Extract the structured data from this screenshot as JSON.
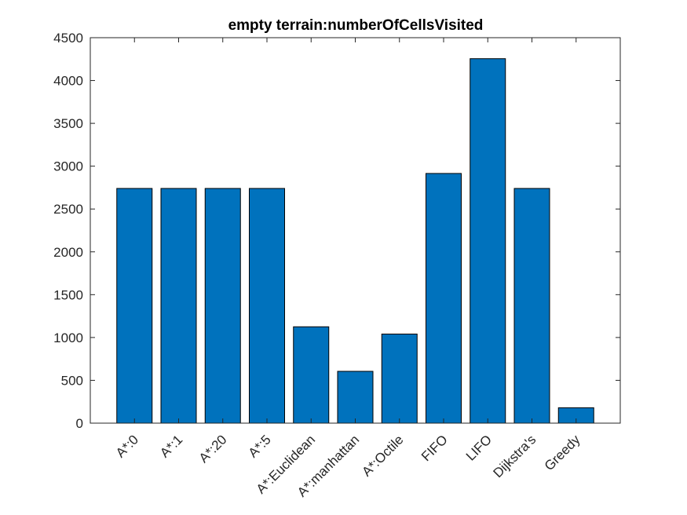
{
  "chart_data": {
    "type": "bar",
    "title": "empty terrain:numberOfCellsVisited",
    "xlabel": "",
    "ylabel": "",
    "categories": [
      "A*:0",
      "A*:1",
      "A*:20",
      "A*:5",
      "A*:Euclidean",
      "A*:manhattan",
      "A*:Octile",
      "FIFO",
      "LIFO",
      "Dijkstra's",
      "Greedy"
    ],
    "values": [
      2740,
      2740,
      2740,
      2740,
      1125,
      605,
      1040,
      2915,
      4255,
      2740,
      180
    ],
    "ylim": [
      0,
      4500
    ],
    "yticks": [
      0,
      500,
      1000,
      1500,
      2000,
      2500,
      3000,
      3500,
      4000,
      4500
    ],
    "grid": false,
    "legend": "none",
    "bar_color": "#0072BD"
  }
}
